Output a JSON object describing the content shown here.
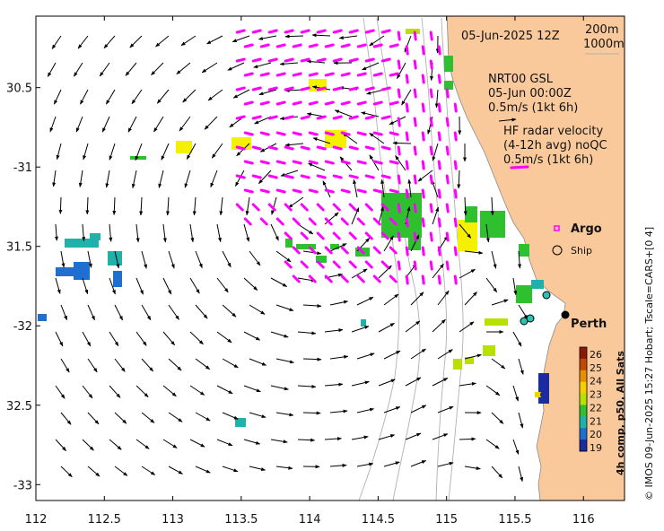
{
  "map": {
    "x_axis": {
      "min": 112,
      "max": 116.3,
      "ticks": [
        "112",
        "112.5",
        "113",
        "113.5",
        "114",
        "114.5",
        "115",
        "115.5",
        "116"
      ],
      "tick_values": [
        112,
        112.5,
        113,
        113.5,
        114,
        114.5,
        115,
        115.5,
        116
      ]
    },
    "y_axis": {
      "min": -33.1,
      "max": -30.05,
      "ticks": [
        "30.5",
        "-31",
        "31.5",
        "-32",
        "32.5",
        "-33"
      ],
      "tick_values": [
        -30.5,
        -31,
        -31.5,
        -32,
        -32.5,
        -33
      ]
    },
    "colors": {
      "land": "#f9c99c",
      "radar_arrow": "#ff00ff",
      "argo": "#ff00ff",
      "isobath": "#b0b0b0"
    }
  },
  "labels": {
    "datetime": "05-Jun-2025 12Z",
    "depth_200": "200m",
    "depth_1000": "1000m",
    "nrt_title": "NRT00 GSL",
    "nrt_date": "05-Jun 00:00Z",
    "nrt_scale": "0.5m/s (1kt 6h)",
    "hf_title": "HF radar velocity",
    "hf_avg": "(4-12h avg) noQC",
    "hf_scale": "0.5m/s (1kt 6h)",
    "argo": "Argo",
    "ship": "Ship",
    "perth": "Perth",
    "credit": "© IMOS 09-Jun-2025 15:27 Hobart; Tscale=CARS+[0 4]",
    "colorbar_title": "4h comp, p50, All Sats"
  },
  "colorbar": {
    "ticks": [
      "26",
      "25",
      "24",
      "23",
      "22",
      "21",
      "20",
      "19"
    ],
    "colors": [
      "#8b1a00",
      "#c24a00",
      "#e88f00",
      "#f5d000",
      "#b8e000",
      "#2ec02e",
      "#20b2aa",
      "#1e6fd0",
      "#1c2ca0"
    ]
  }
}
